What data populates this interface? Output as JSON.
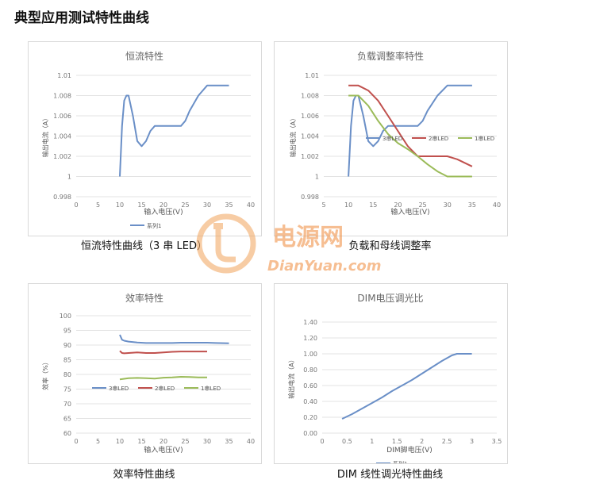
{
  "page": {
    "title": "典型应用测试特性曲线"
  },
  "captions": {
    "c1": "恒流特性曲线（3 串 LED）",
    "c2": "负载和母线调整率",
    "c3": "效率特性曲线",
    "c4": "DIM 线性调光特性曲线"
  },
  "watermark": {
    "brand": "电源网",
    "site": "DianYuan.com"
  },
  "chart_data": [
    {
      "id": "constant-current",
      "type": "line",
      "title": "恒流特性",
      "xlabel": "输入电压(V)",
      "ylabel": "输出电流（A）",
      "xlim": [
        0,
        40
      ],
      "ylim": [
        0.998,
        1.01
      ],
      "xticks": [
        0,
        5,
        10,
        15,
        20,
        25,
        30,
        35,
        40
      ],
      "yticks": [
        0.998,
        1,
        1.002,
        1.004,
        1.006,
        1.008,
        1.01
      ],
      "ytick_labels": [
        "0.998",
        "1",
        "1.002",
        "1.004",
        "1.006",
        "1.008",
        "1.01"
      ],
      "grid": true,
      "legend_position": "bottom",
      "series": [
        {
          "name": "系列1",
          "color": "#6a8fc7",
          "x": [
            10,
            10.5,
            11,
            11.5,
            12,
            13,
            14,
            15,
            16,
            17,
            18,
            19,
            20,
            22,
            24,
            25,
            26,
            28,
            30,
            31,
            32,
            33,
            35
          ],
          "y": [
            1.0,
            1.005,
            1.0075,
            1.008,
            1.008,
            1.006,
            1.0035,
            1.003,
            1.0035,
            1.0045,
            1.005,
            1.005,
            1.005,
            1.005,
            1.005,
            1.0055,
            1.0065,
            1.008,
            1.009,
            1.009,
            1.009,
            1.009,
            1.009
          ]
        }
      ]
    },
    {
      "id": "load-line-regulation",
      "type": "line",
      "title": "负载调整率特性",
      "xlabel": "输入电压(V)",
      "ylabel": "输出电流（A）",
      "xlim": [
        5,
        40
      ],
      "ylim": [
        0.998,
        1.01
      ],
      "xticks": [
        5,
        10,
        15,
        20,
        25,
        30,
        35,
        40
      ],
      "yticks": [
        0.998,
        1,
        1.002,
        1.004,
        1.006,
        1.008,
        1.01
      ],
      "ytick_labels": [
        "0.998",
        "1",
        "1.002",
        "1.004",
        "1.006",
        "1.008",
        "1.01"
      ],
      "grid": true,
      "legend_position": "inside-middle",
      "series": [
        {
          "name": "3串LED",
          "color": "#6a8fc7",
          "x": [
            10,
            10.5,
            11,
            11.5,
            12,
            13,
            14,
            15,
            16,
            17,
            18,
            20,
            22,
            24,
            25,
            26,
            28,
            30,
            31,
            32,
            33,
            35
          ],
          "y": [
            1.0,
            1.005,
            1.0075,
            1.008,
            1.008,
            1.006,
            1.0035,
            1.003,
            1.0035,
            1.0045,
            1.005,
            1.005,
            1.005,
            1.005,
            1.0055,
            1.0065,
            1.008,
            1.009,
            1.009,
            1.009,
            1.009,
            1.009
          ]
        },
        {
          "name": "2串LED",
          "color": "#c0504d",
          "x": [
            10,
            12,
            14,
            16,
            18,
            20,
            22,
            24,
            26,
            28,
            30,
            32,
            35
          ],
          "y": [
            1.009,
            1.009,
            1.0085,
            1.0075,
            1.006,
            1.0045,
            1.003,
            1.002,
            1.002,
            1.002,
            1.002,
            1.0017,
            1.001
          ]
        },
        {
          "name": "1串LED",
          "color": "#9bbb59",
          "x": [
            10,
            11,
            12,
            14,
            16,
            18,
            20,
            22,
            24,
            26,
            28,
            30,
            32,
            35
          ],
          "y": [
            1.008,
            1.008,
            1.008,
            1.007,
            1.0055,
            1.0042,
            1.0033,
            1.0027,
            1.002,
            1.0012,
            1.0005,
            1.0,
            1.0,
            1.0
          ]
        }
      ]
    },
    {
      "id": "efficiency",
      "type": "line",
      "title": "效率特性",
      "xlabel": "输入电压(V)",
      "ylabel": "效率（%）",
      "xlim": [
        0,
        40
      ],
      "ylim": [
        60,
        100
      ],
      "xticks": [
        0,
        5,
        10,
        15,
        20,
        25,
        30,
        35,
        40
      ],
      "yticks": [
        60,
        65,
        70,
        75,
        80,
        85,
        90,
        95,
        100
      ],
      "ytick_labels": [
        "60",
        "65",
        "70",
        "75",
        "80",
        "85",
        "90",
        "95",
        "100"
      ],
      "grid": true,
      "legend_position": "inside-bottom",
      "series": [
        {
          "name": "3串LED",
          "color": "#6a8fc7",
          "x": [
            10,
            10.5,
            11,
            12,
            14,
            16,
            18,
            20,
            22,
            24,
            26,
            28,
            30,
            32,
            35
          ],
          "y": [
            93.5,
            91.8,
            91.5,
            91.2,
            90.9,
            90.7,
            90.7,
            90.7,
            90.7,
            90.8,
            90.8,
            90.8,
            90.8,
            90.7,
            90.6
          ]
        },
        {
          "name": "2串LED",
          "color": "#c0504d",
          "x": [
            10,
            10.5,
            11,
            12,
            14,
            16,
            18,
            20,
            22,
            24,
            26,
            28,
            30
          ],
          "y": [
            88,
            87.3,
            87.2,
            87.3,
            87.5,
            87.3,
            87.3,
            87.5,
            87.7,
            87.8,
            87.8,
            87.8,
            87.8
          ]
        },
        {
          "name": "1串LED",
          "color": "#9bbb59",
          "x": [
            10,
            12,
            14,
            16,
            18,
            20,
            22,
            24,
            26,
            28,
            30
          ],
          "y": [
            78.3,
            78.7,
            78.8,
            78.7,
            78.6,
            78.9,
            79.0,
            79.2,
            79.1,
            79.0,
            79.0
          ]
        }
      ]
    },
    {
      "id": "dim",
      "type": "line",
      "title": "DIM电压调光比",
      "xlabel": "DIM脚电压(V)",
      "ylabel": "输出电流（A）",
      "xlim": [
        0,
        3.5
      ],
      "ylim": [
        0,
        1.4
      ],
      "xticks": [
        0,
        0.5,
        1,
        1.5,
        2,
        2.5,
        3,
        3.5
      ],
      "xtick_labels": [
        "0",
        "0.5",
        "1",
        "1.5",
        "2",
        "2.5",
        "3",
        "3.5"
      ],
      "yticks": [
        0,
        0.2,
        0.4,
        0.6,
        0.8,
        1.0,
        1.2,
        1.4
      ],
      "ytick_labels": [
        "0.00",
        "0.20",
        "0.40",
        "0.60",
        "0.80",
        "1.00",
        "1.20",
        "1.40"
      ],
      "grid": true,
      "legend_position": "bottom",
      "series": [
        {
          "name": "系列1",
          "color": "#6a8fc7",
          "x": [
            0.4,
            0.6,
            0.8,
            1.0,
            1.2,
            1.4,
            1.6,
            1.8,
            2.0,
            2.2,
            2.4,
            2.6,
            2.7,
            2.8,
            3.0
          ],
          "y": [
            0.18,
            0.24,
            0.31,
            0.38,
            0.45,
            0.53,
            0.6,
            0.67,
            0.75,
            0.83,
            0.91,
            0.98,
            1.0,
            1.0,
            1.0
          ]
        }
      ]
    }
  ]
}
